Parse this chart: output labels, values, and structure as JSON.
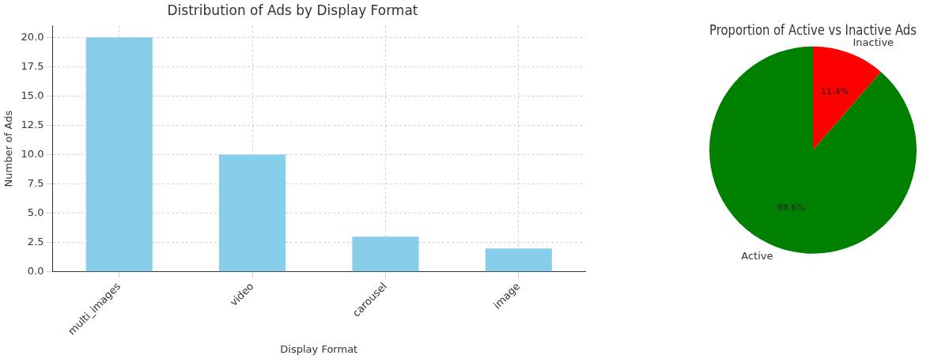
{
  "chart_data": [
    {
      "type": "bar",
      "title": "Distribution of Ads by Display Format",
      "xlabel": "Display Format",
      "ylabel": "Number of Ads",
      "categories": [
        "multi_images",
        "video",
        "carousel",
        "image"
      ],
      "values": [
        20,
        10,
        3,
        2
      ],
      "color": "#87ceeb",
      "ylim": [
        0,
        21
      ],
      "yticks": [
        {
          "value": 0,
          "label": "0.0"
        },
        {
          "value": 2.5,
          "label": "2.5"
        },
        {
          "value": 5,
          "label": "5.0"
        },
        {
          "value": 7.5,
          "label": "7.5"
        },
        {
          "value": 10,
          "label": "10.0"
        },
        {
          "value": 12.5,
          "label": "12.5"
        },
        {
          "value": 15,
          "label": "15.0"
        },
        {
          "value": 17.5,
          "label": "17.5"
        },
        {
          "value": 20,
          "label": "20.0"
        }
      ],
      "grid": true,
      "legend": false
    },
    {
      "type": "pie",
      "title": "Proportion of Active vs Inactive Ads",
      "categories": [
        "Inactive",
        "Active"
      ],
      "values": [
        11.4,
        88.6
      ],
      "colors": [
        "#ff0000",
        "#008000"
      ],
      "value_labels": [
        "11.4%",
        "88.6%"
      ],
      "legend": false
    }
  ]
}
